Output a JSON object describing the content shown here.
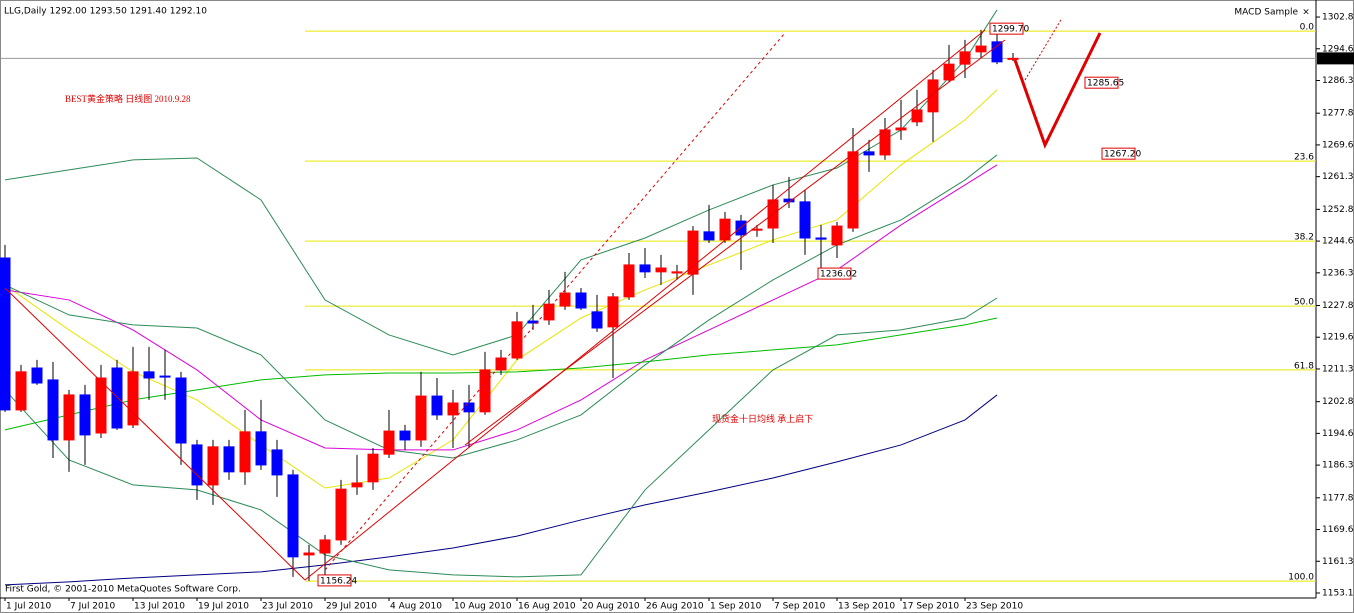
{
  "chart_data": {
    "type": "candlestick",
    "title": "BEST黄金策略 日线图 2010.9.28",
    "annotation": "现货金十日均线 承上启下",
    "header": "LLG,Daily  1292.00 1293.50 1291.40 1292.10",
    "indicator": "MACD Sample",
    "copyright": "First Gold, © 2001-2010 MetaQuotes Software Corp.",
    "up_color": "#ff0000",
    "down_color": "#0000ff",
    "categories": [
      "1 Jul 2010",
      null,
      null,
      null,
      "7 Jul 2010",
      null,
      null,
      null,
      "13 Jul 2010",
      null,
      null,
      null,
      "19 Jul 2010",
      null,
      null,
      null,
      "23 Jul 2010",
      null,
      null,
      null,
      "29 Jul 2010",
      null,
      null,
      null,
      "4 Aug 2010",
      null,
      null,
      null,
      "10 Aug 2010",
      null,
      null,
      null,
      "16 Aug 2010",
      null,
      null,
      null,
      "20 Aug 2010",
      null,
      null,
      null,
      "26 Aug 2010",
      null,
      null,
      null,
      "1 Sep 2010",
      null,
      null,
      null,
      "7 Sep 2010",
      null,
      null,
      null,
      "13 Sep 2010",
      null,
      null,
      null,
      "17 Sep 2010",
      null,
      null,
      null,
      "23 Sep 2010",
      null,
      null,
      null
    ],
    "open": [
      1240.2,
      1200.7,
      1211.6,
      1208.5,
      1192.9,
      1204.6,
      1194.7,
      1211.6,
      1196.8,
      1210.6,
      1209.5,
      1209.0,
      1191.6,
      1181.2,
      1191.1,
      1184.6,
      1195.0,
      1190.3,
      1183.8,
      1163.0,
      1163.5,
      1166.9,
      1180.7,
      1182.0,
      1189.2,
      1195.2,
      1192.9,
      1204.3,
      1199.4,
      1202.5,
      1200.2,
      1211.1,
      1214.2,
      1223.8,
      1224.1,
      1227.7,
      1231.1,
      1226.2,
      1222.3,
      1230.1,
      1238.4,
      1236.6,
      1236.3,
      1236.0,
      1247.0,
      1244.9,
      1249.8,
      1247.5,
      1248.0,
      1255.5,
      1254.8,
      1245.4,
      1243.6,
      1248.0,
      1267.8,
      1267.0,
      1273.5,
      1275.6,
      1278.2,
      1286.5,
      1290.6,
      1293.8,
      1296.4,
      1292.0
    ],
    "high": [
      1243.6,
      1212.4,
      1213.7,
      1213.2,
      1205.9,
      1207.2,
      1212.4,
      1213.7,
      1217.1,
      1217.1,
      1216.3,
      1210.6,
      1192.9,
      1192.9,
      1192.9,
      1200.7,
      1203.3,
      1192.9,
      1185.1,
      1165.6,
      1168.2,
      1182.5,
      1189.0,
      1190.8,
      1200.7,
      1196.8,
      1210.6,
      1209.0,
      1205.9,
      1207.2,
      1215.8,
      1216.3,
      1226.2,
      1228.0,
      1231.9,
      1236.6,
      1232.4,
      1230.6,
      1231.1,
      1241.5,
      1242.8,
      1241.0,
      1238.4,
      1248.5,
      1254.0,
      1252.2,
      1251.4,
      1248.8,
      1259.2,
      1261.3,
      1257.9,
      1248.8,
      1249.6,
      1274.0,
      1270.9,
      1276.6,
      1281.3,
      1283.9,
      1289.1,
      1295.6,
      1296.9,
      1299.5,
      1299.7,
      1293.5
    ],
    "low": [
      1200.2,
      1200.2,
      1207.2,
      1188.2,
      1184.6,
      1186.4,
      1193.4,
      1195.5,
      1196.0,
      1203.3,
      1203.3,
      1186.4,
      1177.3,
      1176.0,
      1182.5,
      1181.2,
      1185.1,
      1178.1,
      1157.3,
      1156.24,
      1157.0,
      1165.6,
      1178.6,
      1179.9,
      1188.2,
      1190.3,
      1191.1,
      1198.1,
      1190.8,
      1190.8,
      1199.4,
      1209.8,
      1213.7,
      1221.5,
      1222.8,
      1226.7,
      1226.7,
      1221.0,
      1209.0,
      1229.3,
      1235.0,
      1233.2,
      1234.5,
      1230.6,
      1244.1,
      1244.1,
      1237.1,
      1245.7,
      1244.1,
      1253.2,
      1241.0,
      1236.02,
      1240.2,
      1247.0,
      1262.6,
      1265.7,
      1270.9,
      1274.5,
      1270.4,
      1286.0,
      1287.0,
      1292.2,
      1290.6,
      1291.4
    ],
    "close": [
      1200.7,
      1210.6,
      1207.7,
      1192.9,
      1204.6,
      1194.2,
      1209.0,
      1196.0,
      1210.6,
      1209.0,
      1209.3,
      1192.1,
      1181.2,
      1191.1,
      1184.6,
      1195.0,
      1186.4,
      1183.8,
      1162.5,
      1163.5,
      1166.9,
      1180.1,
      1181.7,
      1189.2,
      1195.2,
      1192.9,
      1204.3,
      1199.4,
      1202.5,
      1200.2,
      1211.1,
      1214.2,
      1223.6,
      1223.3,
      1228.2,
      1231.1,
      1227.2,
      1222.0,
      1230.1,
      1238.4,
      1236.6,
      1237.6,
      1236.6,
      1247.2,
      1244.9,
      1250.3,
      1246.2,
      1247.7,
      1255.3,
      1254.8,
      1245.4,
      1245.1,
      1248.5,
      1267.8,
      1267.0,
      1273.5,
      1274.0,
      1278.7,
      1286.5,
      1290.6,
      1293.8,
      1295.3,
      1291.2,
      1292.1
    ],
    "ylim": [
      1151.8,
      1305.2
    ],
    "yticks": [
      1302.85,
      {
        "value": 1294.6,
        "label": "1294.60"
      },
      1286.35,
      1277.85,
      {
        "value": 1269.6,
        "label": "1269.60"
      },
      1261.35,
      1252.85,
      {
        "value": 1244.6,
        "label": "1244.60"
      },
      1236.35,
      1227.85,
      {
        "value": 1219.6,
        "label": "1219.60"
      },
      1211.35,
      1202.85,
      {
        "value": 1194.6,
        "label": "1194.60"
      },
      1186.35,
      1177.85,
      {
        "value": 1169.6,
        "label": "1169.60"
      },
      1161.35,
      {
        "value": 1153.1,
        "label": "1153.10"
      }
    ],
    "current_price": {
      "value": 1292.1,
      "label": "1292.10"
    },
    "fibonacci": [
      {
        "value": 1299.2,
        "label": "0.0"
      },
      {
        "value": 1265.4,
        "label": "23.6"
      },
      {
        "value": 1244.6,
        "label": "38.2"
      },
      {
        "value": 1227.7,
        "label": "50.0"
      },
      {
        "value": 1211.1,
        "label": "61.8"
      },
      {
        "value": 1156.2,
        "label": "100.0"
      }
    ],
    "fib_color": "#e6e600",
    "price_labels": [
      {
        "value": 1299.7,
        "label": "1299.70"
      },
      {
        "value": 1285.65,
        "label": "1285.65"
      },
      {
        "value": 1267.2,
        "label": "1267.20"
      },
      {
        "value": 1236.02,
        "label": "1236.02"
      },
      {
        "value": 1156.24,
        "label": "1156.24"
      }
    ],
    "lines": [
      {
        "color": "#e6e600",
        "x": [
          0,
          4,
          8,
          12,
          16,
          20,
          24,
          28,
          32,
          36,
          40,
          44,
          48,
          52,
          56,
          60,
          62
        ],
        "values": [
          1233.2,
          1221.5,
          1210.6,
          1203.3,
          1191.6,
          1180.4,
          1183.0,
          1192.9,
          1213.7,
          1224.6,
          1231.9,
          1238.4,
          1244.9,
          1250.1,
          1264.4,
          1276.1,
          1283.9
        ]
      },
      {
        "color": "#dd00dd",
        "x": [
          0,
          4,
          8,
          12,
          16,
          20,
          24,
          28,
          32,
          36,
          40,
          44,
          48,
          52,
          56,
          60,
          62
        ],
        "values": [
          1231.9,
          1229.3,
          1221.5,
          1211.1,
          1198.1,
          1190.8,
          1190.3,
          1190.3,
          1195.5,
          1203.3,
          1213.7,
          1221.5,
          1229.3,
          1237.1,
          1248.8,
          1259.2,
          1264.4
        ]
      },
      {
        "color": "#00bb00",
        "x": [
          0,
          4,
          8,
          12,
          16,
          20,
          24,
          28,
          32,
          36,
          40,
          44,
          48,
          52,
          56,
          60,
          62
        ],
        "values": [
          1195.5,
          1199.4,
          1203.3,
          1205.9,
          1208.5,
          1209.8,
          1210.3,
          1210.3,
          1210.6,
          1211.6,
          1213.2,
          1215.0,
          1216.3,
          1217.6,
          1220.2,
          1222.8,
          1224.6
        ]
      },
      {
        "color": "#000080",
        "x": [
          0,
          4,
          8,
          12,
          16,
          20,
          24,
          28,
          32,
          36,
          40,
          44,
          48,
          52,
          56,
          60,
          62
        ],
        "values": [
          1155.2,
          1156.0,
          1157.0,
          1157.8,
          1158.6,
          1160.4,
          1162.5,
          1164.8,
          1167.9,
          1172.1,
          1176.0,
          1179.4,
          1183.0,
          1187.2,
          1191.6,
          1198.1,
          1204.6
        ]
      },
      {
        "color": "#2e8b57",
        "x": [
          0,
          4,
          8,
          12,
          16,
          20,
          24,
          28,
          32,
          36,
          40,
          44,
          48,
          52,
          56,
          60,
          62
        ],
        "values": [
          1260.5,
          1263.1,
          1265.7,
          1266.2,
          1255.3,
          1229.3,
          1220.2,
          1215.0,
          1220.2,
          1239.7,
          1245.4,
          1252.7,
          1259.2,
          1263.6,
          1273.5,
          1291.7,
          1304.7
        ]
      },
      {
        "color": "#2e8b57",
        "x": [
          0,
          4,
          8,
          12,
          16,
          20,
          24,
          28,
          32,
          36,
          40,
          44,
          48,
          52,
          56,
          60,
          62
        ],
        "values": [
          1233.2,
          1225.4,
          1222.8,
          1222.0,
          1215.0,
          1198.1,
          1190.3,
          1188.2,
          1192.9,
          1199.4,
          1212.4,
          1224.1,
          1234.5,
          1243.6,
          1250.1,
          1260.5,
          1267.0
        ]
      },
      {
        "color": "#2e8b57",
        "x": [
          0,
          4,
          8,
          12,
          16,
          20,
          24,
          28,
          32,
          36,
          40,
          44,
          48,
          52,
          56,
          60,
          62
        ],
        "values": [
          1205.9,
          1187.7,
          1181.2,
          1179.9,
          1174.7,
          1163.0,
          1159.1,
          1157.8,
          1157.3,
          1157.8,
          1179.9,
          1195.5,
          1211.1,
          1220.2,
          1221.5,
          1224.6,
          1229.8
        ]
      }
    ]
  }
}
